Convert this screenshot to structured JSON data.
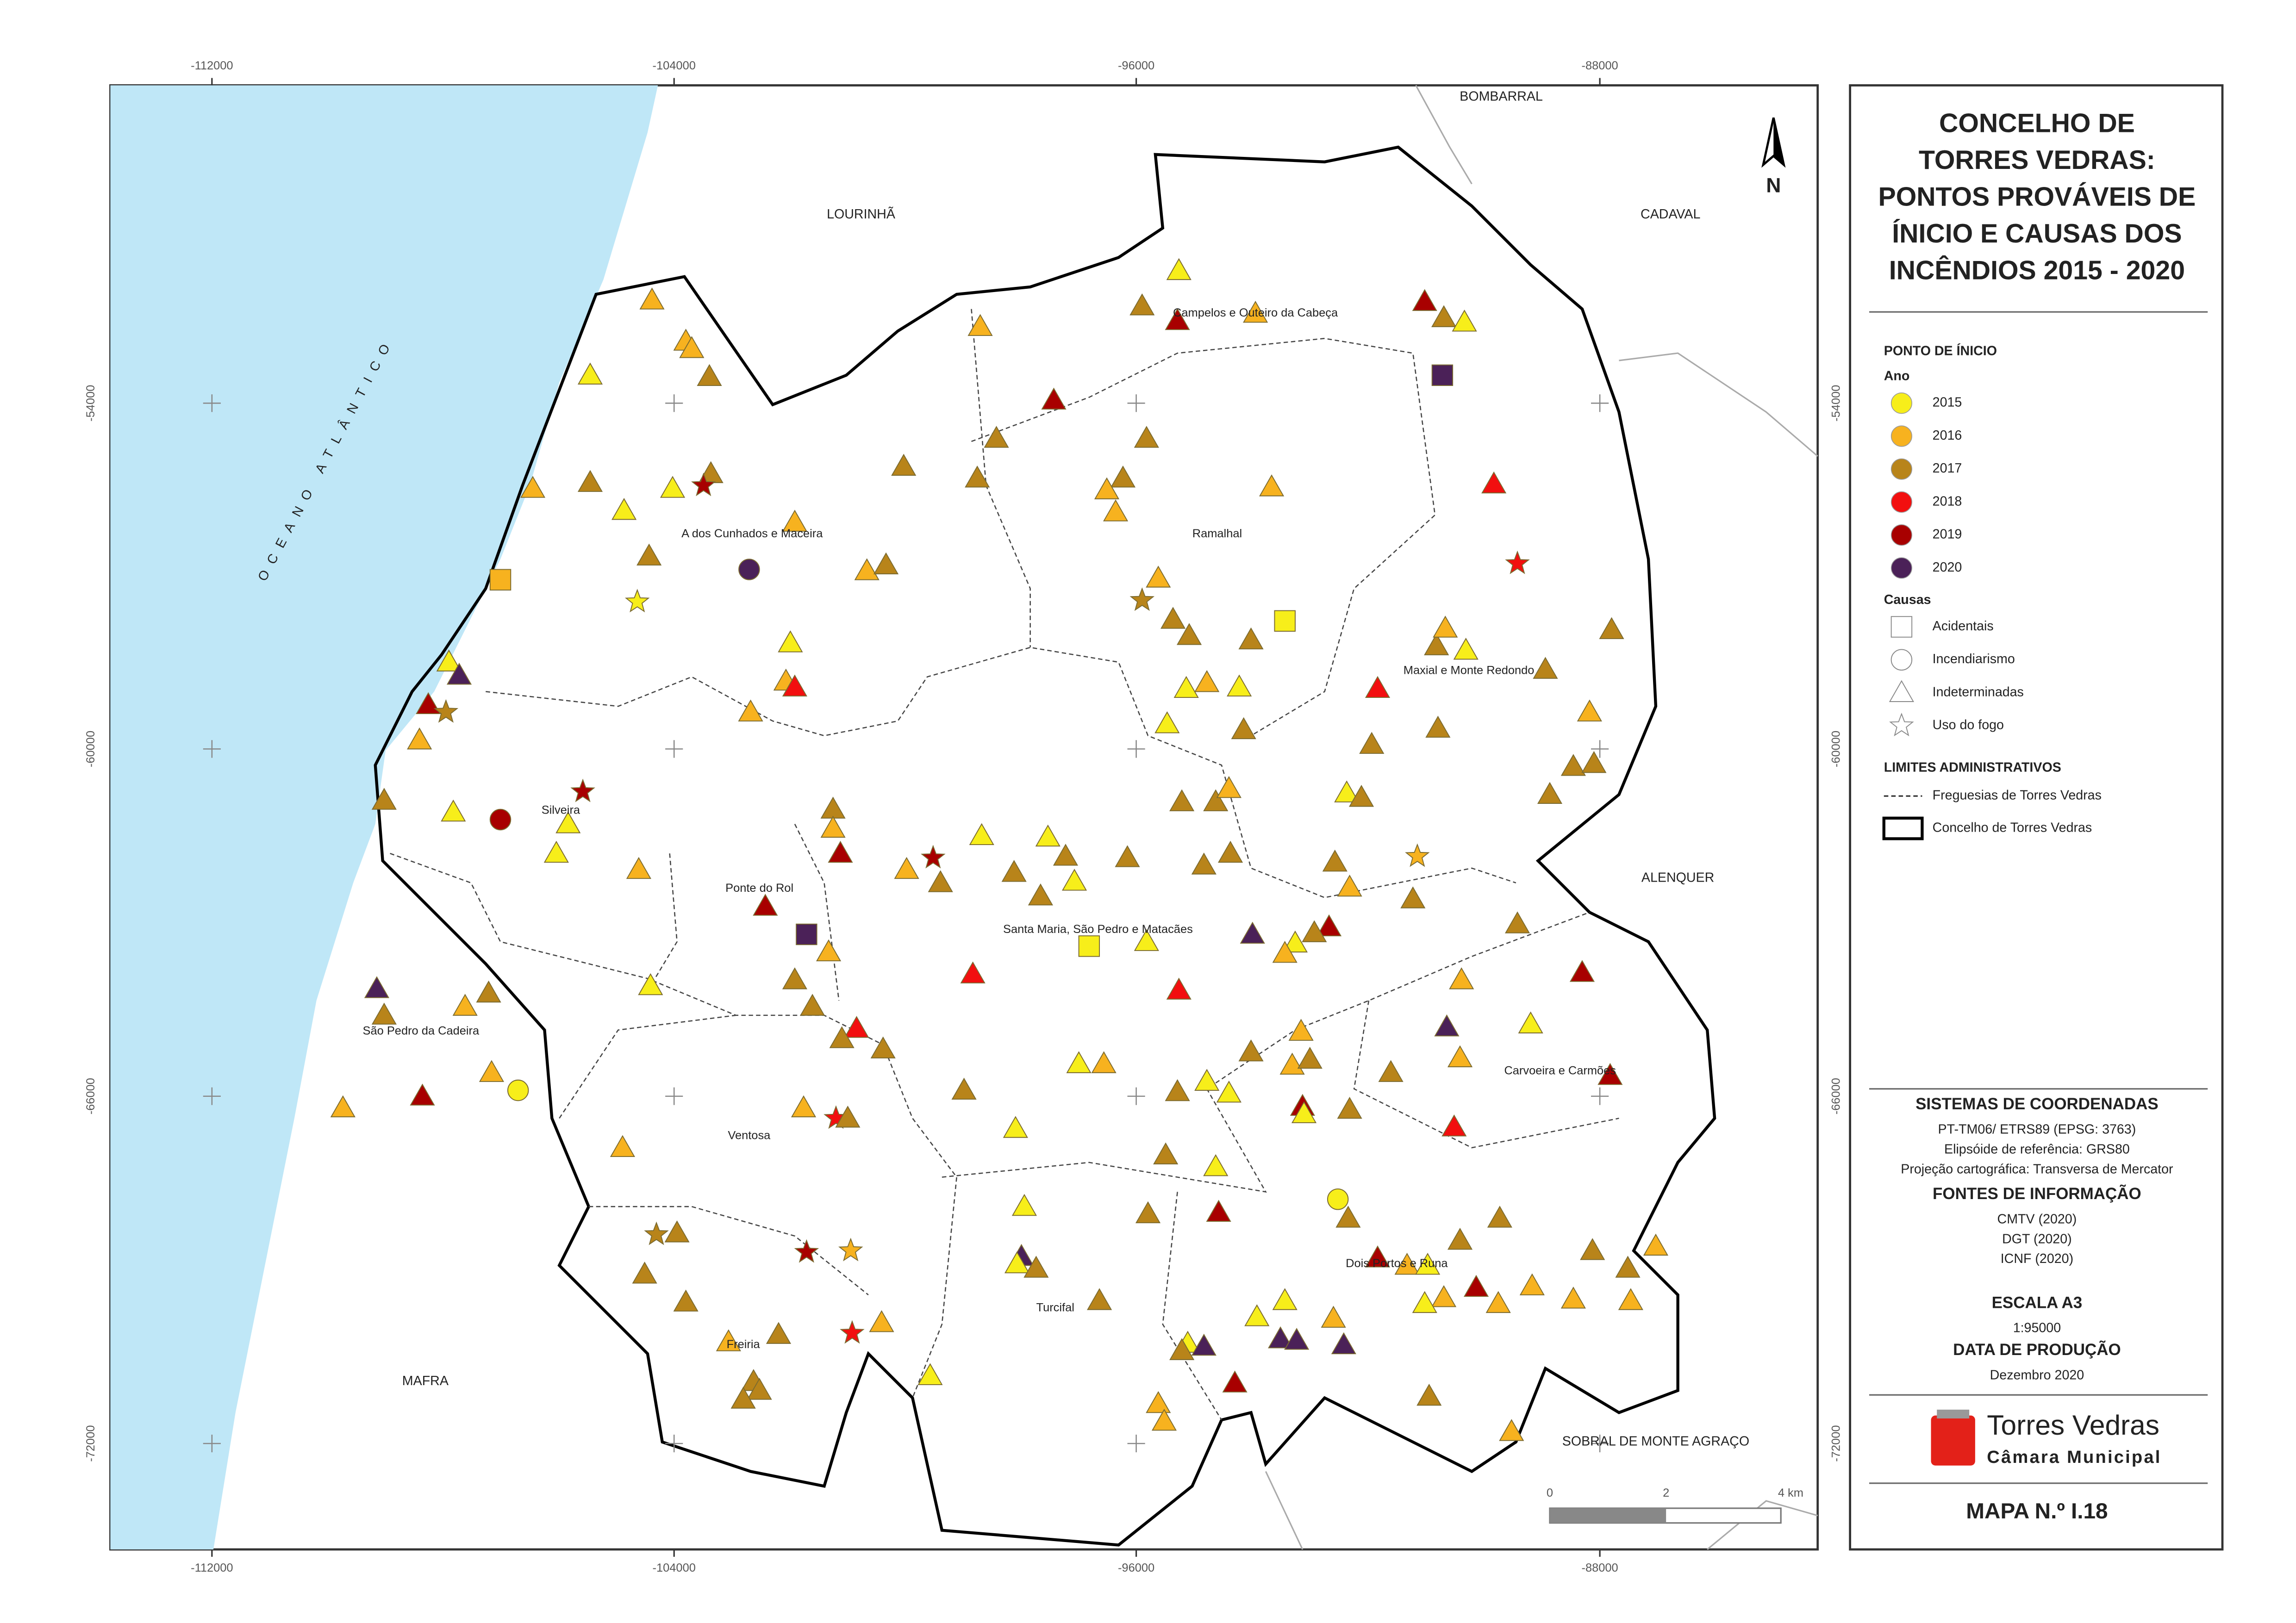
{
  "map": {
    "x_ticks": [
      "-112000",
      "-104000",
      "-96000",
      "-88000"
    ],
    "y_ticks": [
      "-54000",
      "-60000",
      "-66000",
      "-72000"
    ],
    "sea_label": "OCEANO ATLÂNTICO",
    "north": "N",
    "neighbors": [
      "BOMBARRAL",
      "LOURINHÃ",
      "CADAVAL",
      "ALENQUER",
      "MAFRA",
      "SOBRAL DE MONTE AGRAÇO"
    ],
    "parishes": [
      "Campelos e Outeiro da Cabeça",
      "A dos Cunhados e Maceira",
      "Ramalhal",
      "Maxial e Monte Redondo",
      "Silveira",
      "Ponte do Rol",
      "Santa Maria, São Pedro e Matacães",
      "São Pedro da Cadeira",
      "Carvoeira e Carmões",
      "Ventosa",
      "Dois Portos e Runa",
      "Turcifal",
      "Freiria"
    ],
    "scale_bar": [
      "0",
      "2",
      "4 km"
    ]
  },
  "legend": {
    "title_lines": [
      "CONCELHO DE",
      "TORRES VEDRAS:",
      "PONTOS PROVÁVEIS DE",
      "ÍNICIO E CAUSAS DOS",
      "INCÊNDIOS 2015 - 2020"
    ],
    "section": "PONTO DE ÍNICIO",
    "year_heading": "Ano",
    "years": [
      "2015",
      "2016",
      "2017",
      "2018",
      "2019",
      "2020"
    ],
    "cause_heading": "Causas",
    "causes": [
      "Acidentais",
      "Incendiarismo",
      "Indeterminadas",
      "Uso do fogo"
    ],
    "limits_heading": "LIMITES ADMINISTRATIVOS",
    "limits": [
      "Freguesias de Torres Vedras",
      "Concelho de Torres Vedras"
    ]
  },
  "info": {
    "crs_heading": "SISTEMAS DE COORDENADAS",
    "crs": [
      "PT-TM06/ ETRS89 (EPSG: 3763)",
      "Elipsóide de referência: GRS80",
      "Projeção cartográfica: Transversa de Mercator"
    ],
    "sources_heading": "FONTES DE INFORMAÇÃO",
    "sources": [
      "CMTV (2020)",
      "DGT (2020)",
      "ICNF (2020)"
    ],
    "scale_heading": "ESCALA A3",
    "scale": "1:95000",
    "date_heading": "DATA DE PRODUÇÃO",
    "date": "Dezembro 2020",
    "logo_name": "Torres Vedras",
    "logo_sub": "Câmara Municipal",
    "map_number": "MAPA N.º I.18"
  }
}
